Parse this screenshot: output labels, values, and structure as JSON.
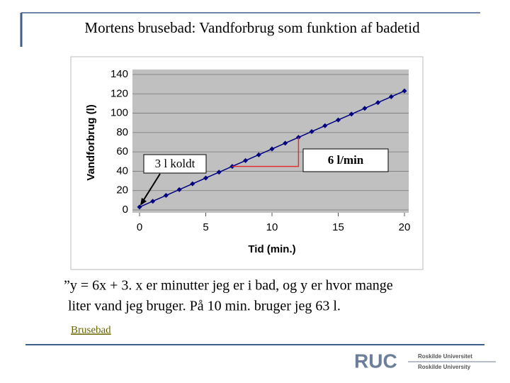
{
  "title": "Mortens brusebad: Vandforbrug som funktion af badetid",
  "chart_data": {
    "type": "line",
    "x": [
      0,
      1,
      2,
      3,
      4,
      5,
      6,
      7,
      8,
      9,
      10,
      11,
      12,
      13,
      14,
      15,
      16,
      17,
      18,
      19,
      20
    ],
    "series": [
      {
        "name": "Vandforbrug",
        "color": "#000080",
        "values": [
          3,
          9,
          15,
          21,
          27,
          33,
          39,
          45,
          51,
          57,
          63,
          69,
          75,
          81,
          87,
          93,
          99,
          105,
          111,
          117,
          123
        ]
      }
    ],
    "xlim": [
      0,
      20
    ],
    "xticks": [
      0,
      5,
      10,
      15,
      20
    ],
    "ylim": [
      0,
      140
    ],
    "yticks": [
      0,
      20,
      40,
      60,
      80,
      100,
      120,
      140
    ],
    "x_label": "Tid (min.)",
    "y_label": "Vandforbrug (l)",
    "grid": true,
    "annotations": [
      "3 l koldt",
      "6 l/min"
    ]
  },
  "body": [
    "”y = 6x + 3. x er minutter jeg er i bad, og y er hvor mange",
    "liter vand jeg bruger. På 10 min. bruger jeg 63 l."
  ],
  "link": "Brusebad",
  "logo": {
    "mark": "RUC",
    "line1": "Roskilde Universitet",
    "line2": "Roskilde University"
  }
}
